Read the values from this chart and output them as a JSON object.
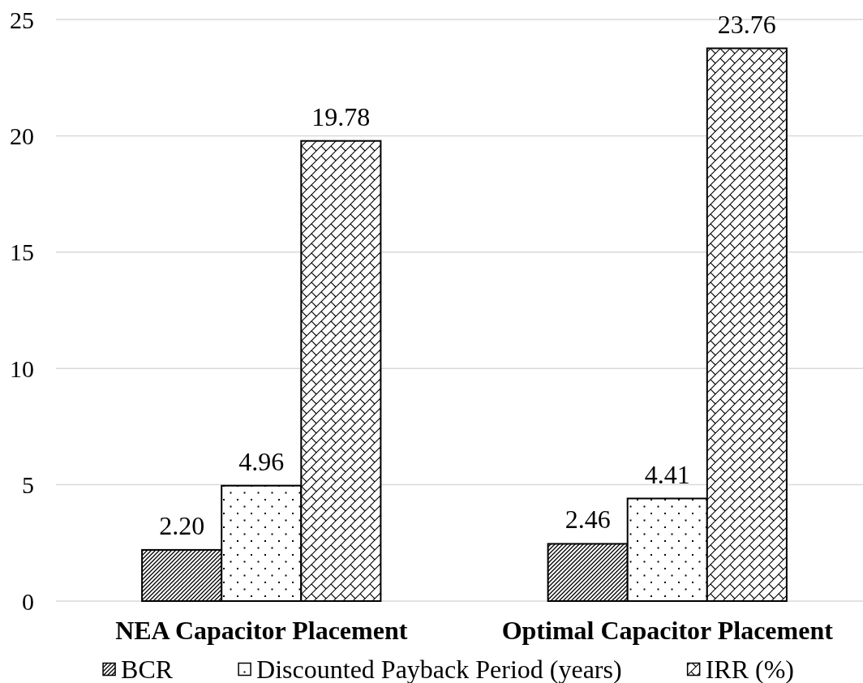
{
  "chart_data": {
    "type": "bar",
    "categories": [
      "NEA Capacitor Placement",
      "Optimal Capacitor Placement"
    ],
    "series": [
      {
        "name": "BCR",
        "color": "#000000",
        "values": [
          2.2,
          2.46
        ],
        "value_labels": [
          "2.20",
          "2.46"
        ]
      },
      {
        "name": "Discounted Payback Period (years)",
        "color": "#000000",
        "values": [
          4.96,
          4.41
        ],
        "value_labels": [
          "4.96",
          "4.41"
        ]
      },
      {
        "name": "IRR (%)",
        "color": "#000000",
        "values": [
          19.78,
          23.76
        ],
        "value_labels": [
          "19.78",
          "23.76"
        ]
      }
    ],
    "ylim": [
      0,
      25
    ],
    "yticks": [
      0,
      5,
      10,
      15,
      20,
      25
    ],
    "grid": "y",
    "legend": "bottom"
  }
}
